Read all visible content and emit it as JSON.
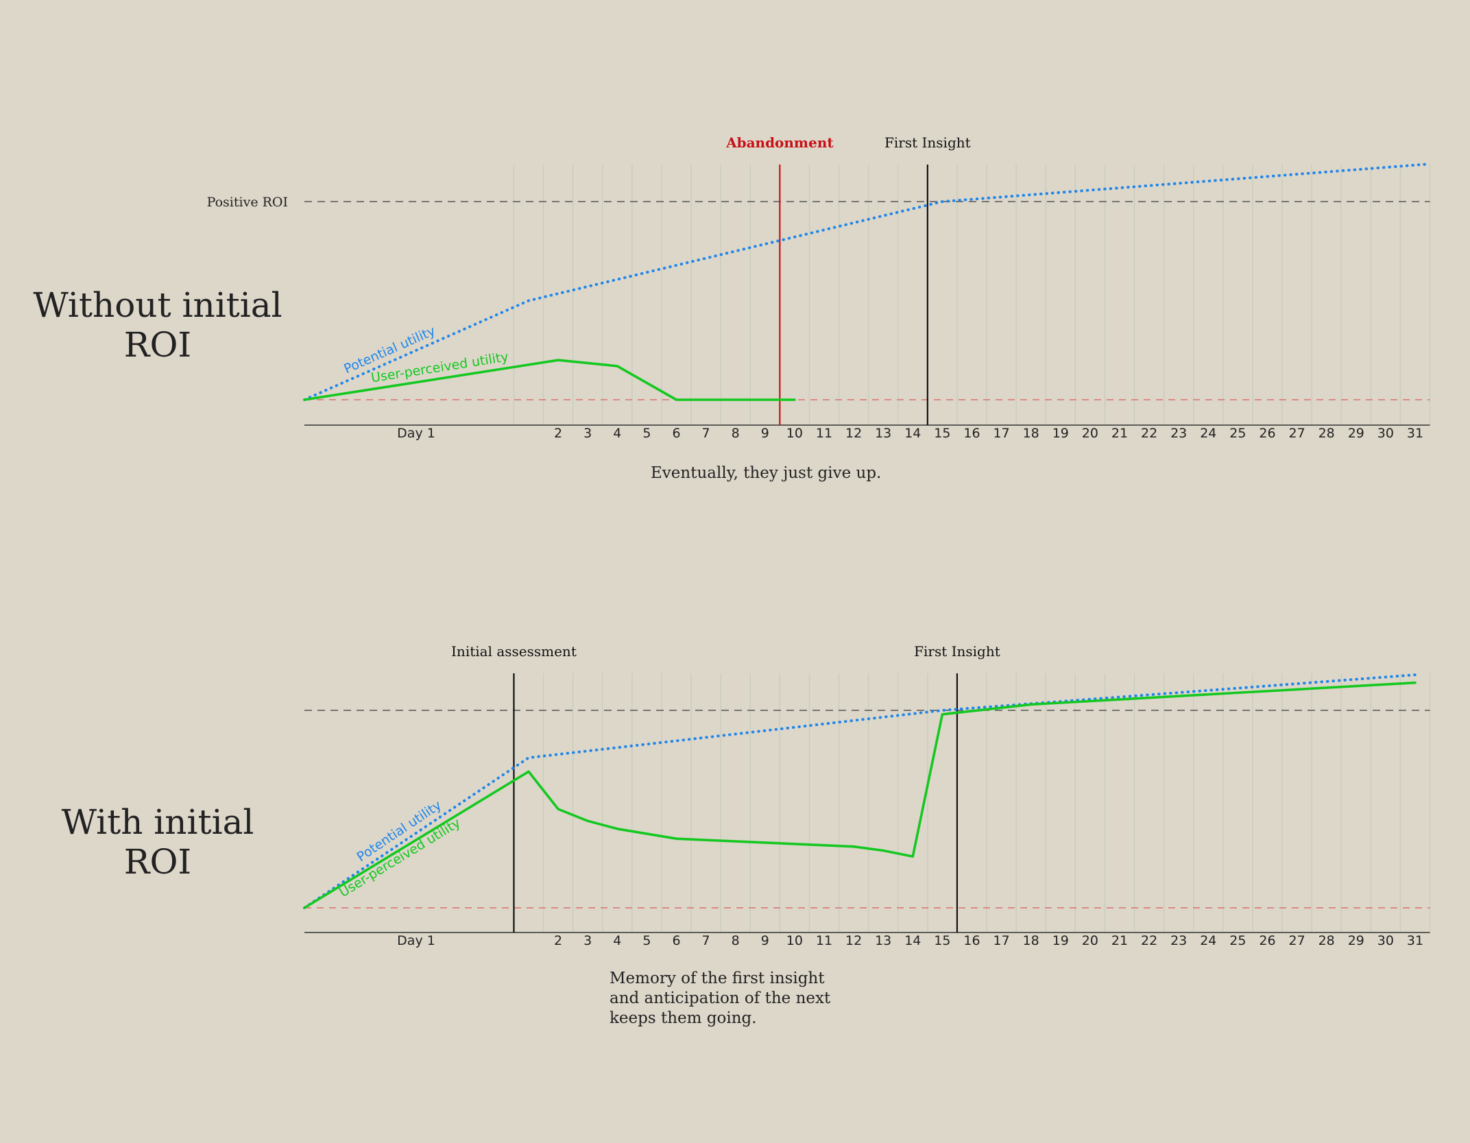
{
  "colors": {
    "background": "#ddd7ca",
    "potential": "#1f86ea",
    "perceived": "#14c820",
    "abandonment": "#c81016",
    "grid": "#c9cdbc",
    "text": "#222222",
    "roi_line": "#555555",
    "zero_line": "#d9706f"
  },
  "chart_data": [
    {
      "type": "line",
      "title": "Without initial ROI",
      "title_lines": [
        "Without initial",
        "ROI"
      ],
      "caption_lines": [
        "Eventually, they just give up."
      ],
      "day_labels": [
        "Day 1",
        "2",
        "3",
        "4",
        "5",
        "6",
        "7",
        "8",
        "9",
        "10",
        "11",
        "12",
        "13",
        "14",
        "15",
        "16",
        "17",
        "18",
        "19",
        "20",
        "21",
        "22",
        "23",
        "24",
        "25",
        "26",
        "27",
        "28",
        "29",
        "30",
        "31"
      ],
      "reference_label": "Positive ROI",
      "reference_level": 1.0,
      "ylim": [
        0,
        1.1
      ],
      "xlim": [
        0,
        31
      ],
      "grid": true,
      "events": [
        {
          "label": "Abandonment",
          "day": 10.0,
          "kind": "abandonment"
        },
        {
          "label": "First Insight",
          "day": 15.0,
          "kind": "insight"
        }
      ],
      "series": [
        {
          "name": "Potential utility",
          "style": "dotted",
          "x": [
            0,
            1.0,
            15.0,
            31.5
          ],
          "y": [
            0,
            0.5,
            1.0,
            1.19
          ]
        },
        {
          "name": "User-perceived utility",
          "style": "solid",
          "x": [
            0,
            2.0,
            4.0,
            6.0,
            10.0
          ],
          "y": [
            0,
            0.2,
            0.17,
            0,
            0
          ]
        }
      ]
    },
    {
      "type": "line",
      "title": "With initial ROI",
      "title_lines": [
        "With initial",
        "ROI"
      ],
      "caption_lines": [
        "Memory of the first insight",
        "and anticipation of the next",
        "keeps them going."
      ],
      "day_labels": [
        "Day 1",
        "2",
        "3",
        "4",
        "5",
        "6",
        "7",
        "8",
        "9",
        "10",
        "11",
        "12",
        "13",
        "14",
        "15",
        "16",
        "17",
        "18",
        "19",
        "20",
        "21",
        "22",
        "23",
        "24",
        "25",
        "26",
        "27",
        "28",
        "29",
        "30",
        "31"
      ],
      "reference_label": "",
      "reference_level": 1.0,
      "ylim": [
        0,
        1.1
      ],
      "xlim": [
        0,
        31
      ],
      "grid": true,
      "events": [
        {
          "label": "Initial assessment",
          "day": 1.0,
          "kind": "assessment"
        },
        {
          "label": "First Insight",
          "day": 16.0,
          "kind": "insight"
        }
      ],
      "series": [
        {
          "name": "Potential utility",
          "style": "dotted",
          "x": [
            0,
            1.0,
            15.0,
            31.0
          ],
          "y": [
            0,
            0.76,
            1.0,
            1.18
          ]
        },
        {
          "name": "User-perceived utility",
          "style": "solid",
          "x": [
            0,
            1.0,
            2.0,
            3.0,
            4.0,
            6.0,
            12.0,
            13.0,
            14.0,
            15.0,
            18.0,
            31.0
          ],
          "y": [
            0,
            0.69,
            0.5,
            0.44,
            0.4,
            0.35,
            0.31,
            0.29,
            0.26,
            0.98,
            1.03,
            1.14
          ]
        }
      ]
    }
  ]
}
